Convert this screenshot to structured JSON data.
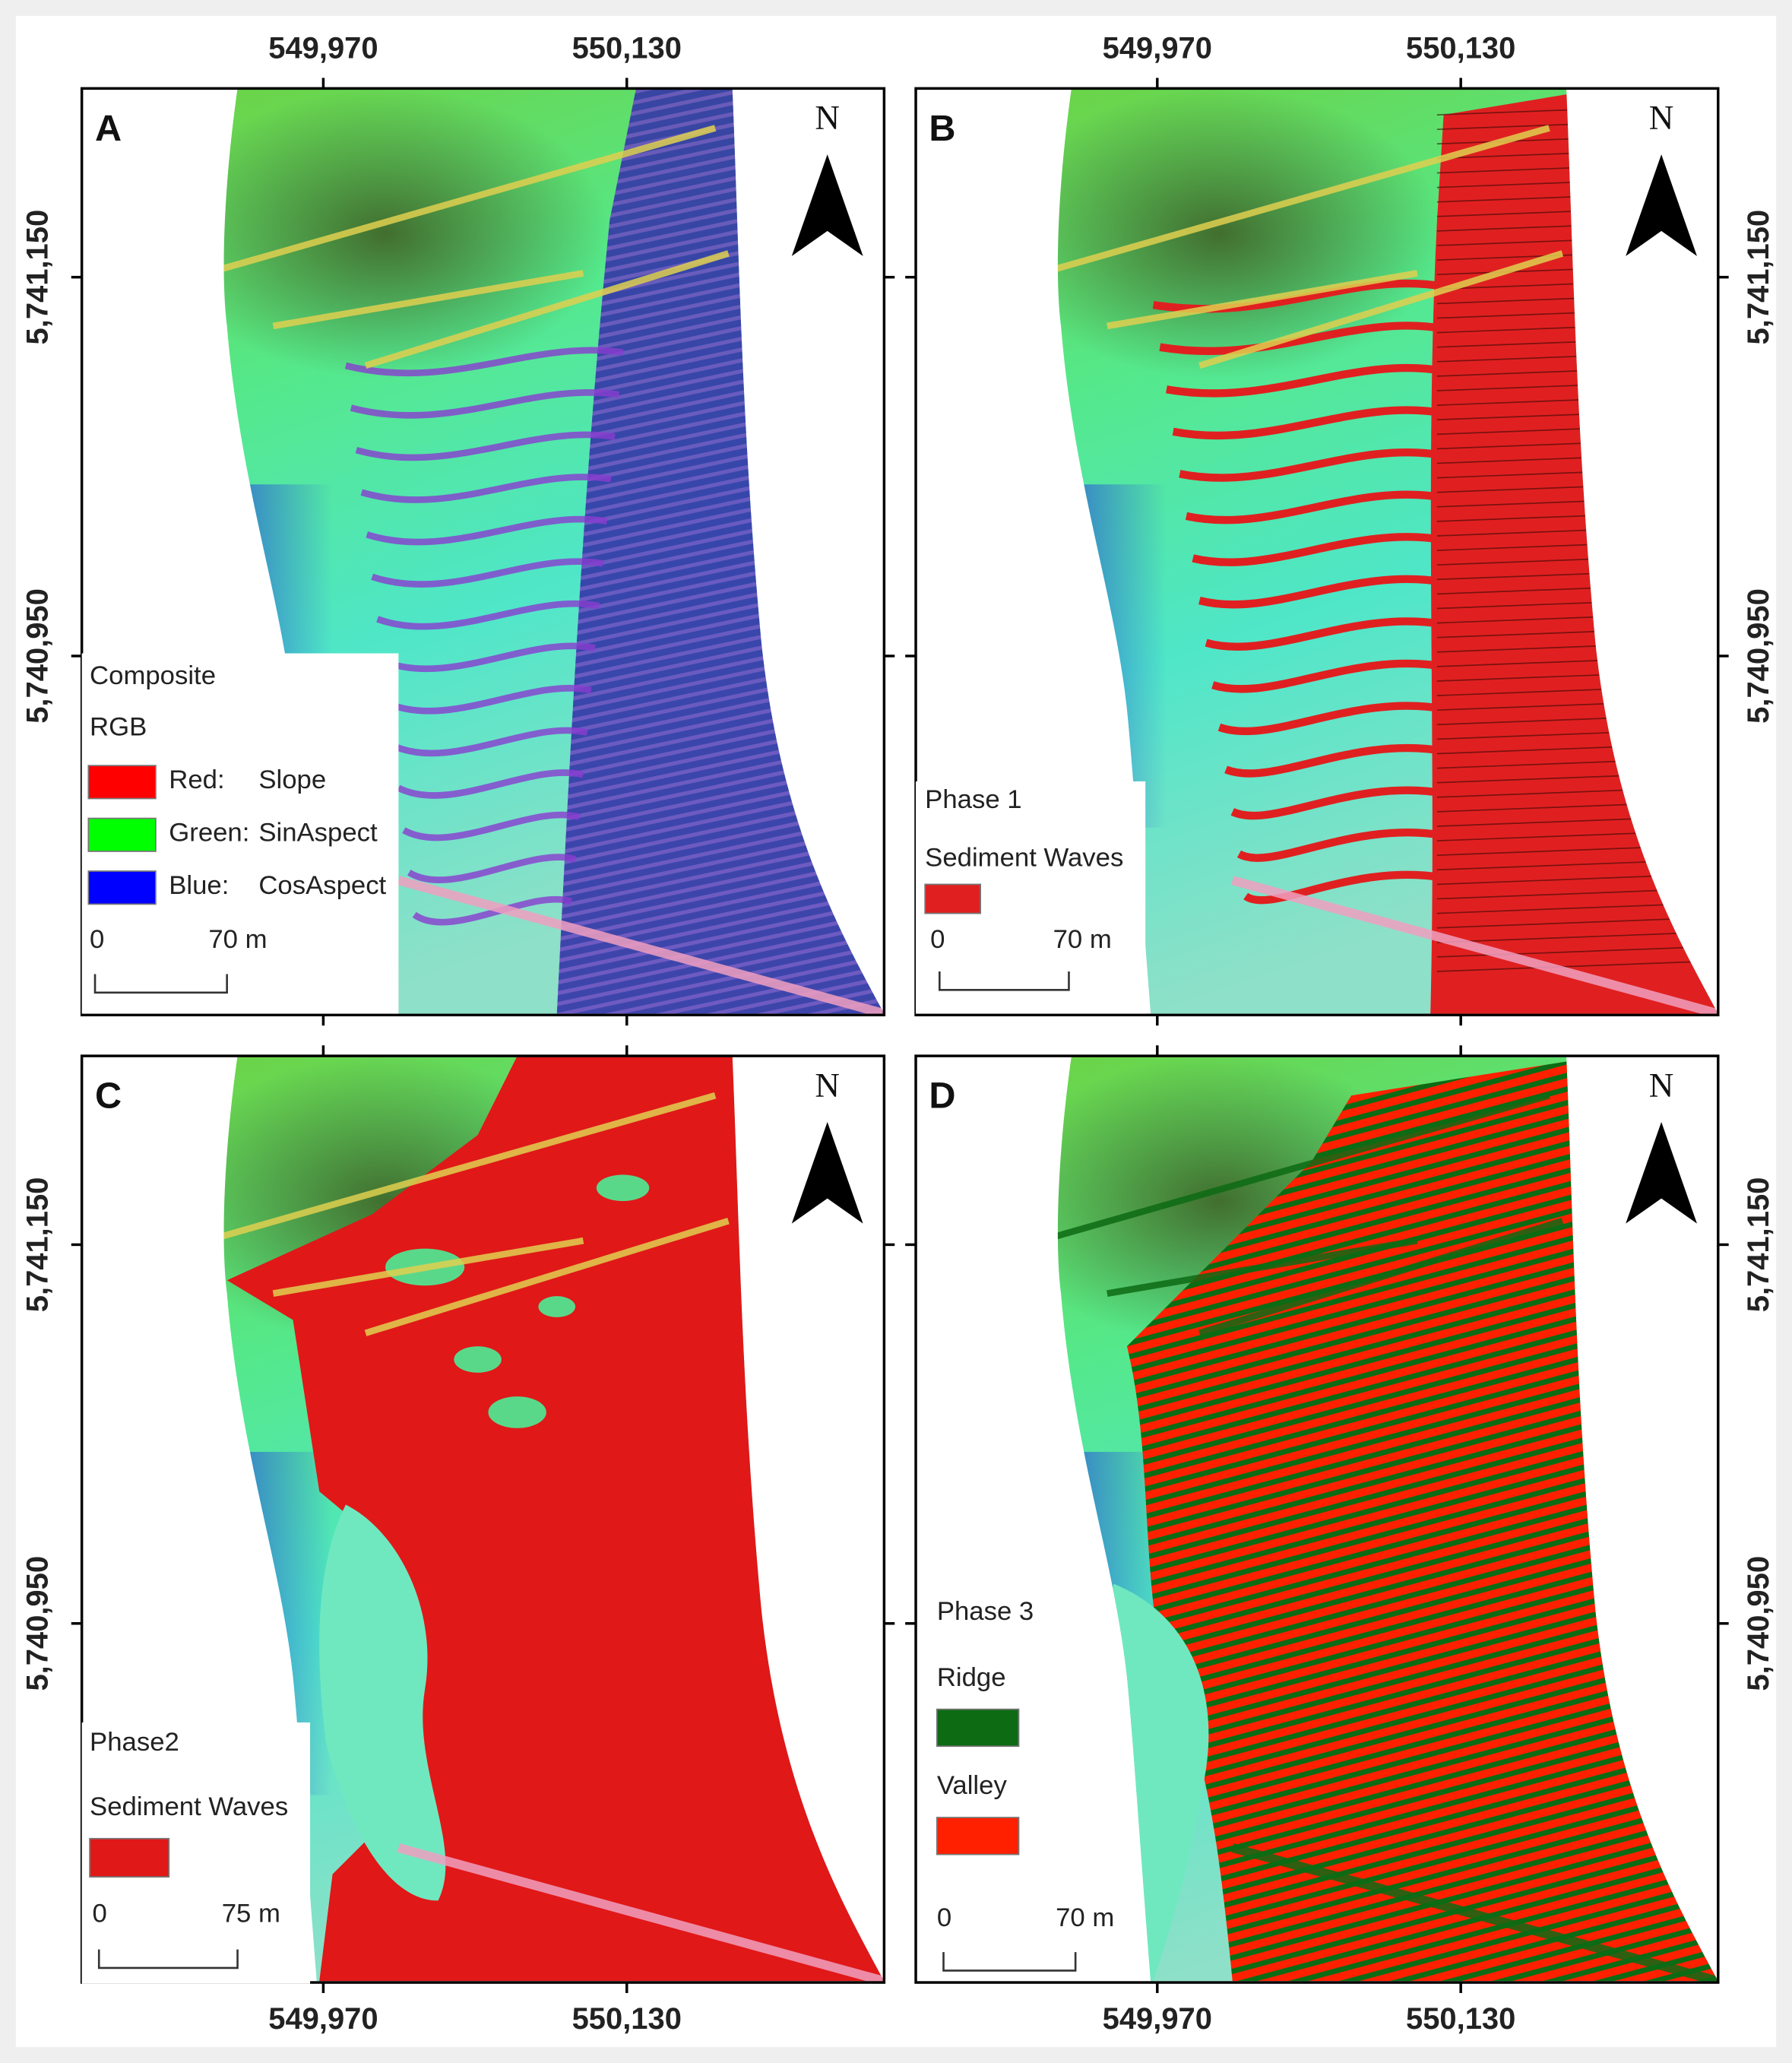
{
  "axes": {
    "x_ticks": [
      "549,970",
      "550,130"
    ],
    "y_ticks": [
      "5,741,150",
      "5,740,950"
    ]
  },
  "north_label": "N",
  "panels": [
    {
      "label": "A",
      "legend": {
        "title": "Composite",
        "subtitle": "RGB",
        "items": [
          {
            "name": "Red:",
            "value": "Slope",
            "color": "#ff0000"
          },
          {
            "name": "Green:",
            "value": "SinAspect",
            "color": "#00ff00"
          },
          {
            "name": "Blue:",
            "value": "CosAspect",
            "color": "#0000ff"
          }
        ]
      },
      "scale": {
        "start": "0",
        "end": "70 m"
      }
    },
    {
      "label": "B",
      "legend": {
        "title": "Phase 1",
        "items": [
          {
            "name": "Sediment Waves",
            "color": "#e02020"
          }
        ]
      },
      "scale": {
        "start": "0",
        "end": "70 m"
      }
    },
    {
      "label": "C",
      "legend": {
        "title": "Phase2",
        "items": [
          {
            "name": "Sediment Waves",
            "color": "#e01818"
          }
        ]
      },
      "scale": {
        "start": "0",
        "end": "75 m"
      }
    },
    {
      "label": "D",
      "legend": {
        "title": "Phase 3",
        "items": [
          {
            "name": "Ridge",
            "color": "#0d6b14"
          },
          {
            "name": "Valley",
            "color": "#ff2000"
          }
        ]
      },
      "scale": {
        "start": "0",
        "end": "70 m"
      }
    }
  ]
}
